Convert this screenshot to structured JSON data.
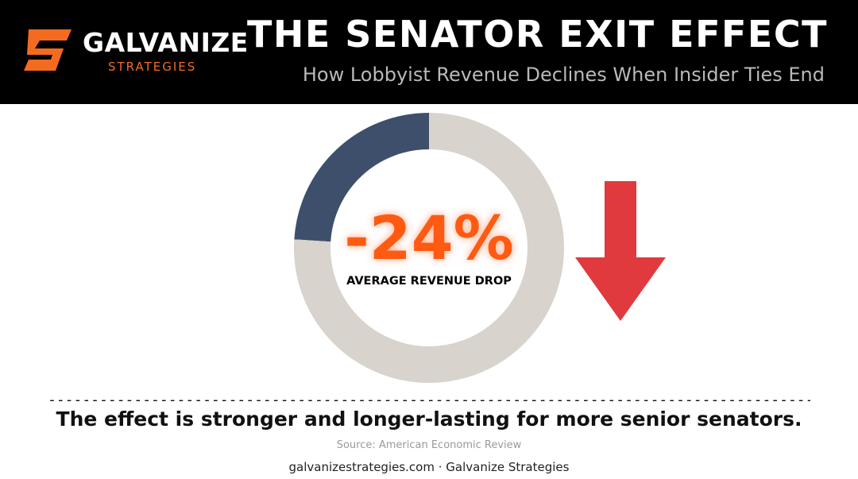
{
  "brand": {
    "name": "GALVANIZE",
    "tagline": "STRATEGIES",
    "accent_color": "#f26b21"
  },
  "header": {
    "title": "THE SENATOR EXIT EFFECT",
    "subtitle": "How Lobbyist Revenue Declines When Insider Ties End"
  },
  "chart_data": {
    "type": "pie",
    "variant": "donut",
    "slices": [
      {
        "value": 24,
        "color": "#3d4f6b"
      },
      {
        "value": 76,
        "color": "#d8d3cc"
      }
    ],
    "center_value": "-24%",
    "center_label": "AVERAGE REVENUE DROP",
    "center_value_color": "#ff5a12",
    "trend_icon": "down-arrow-icon",
    "trend_color": "#e03a3e"
  },
  "divider_text": "--------------------------------------------------------------------------------------------------",
  "takeaway": "The effect is stronger and longer-lasting for more senior senators.",
  "source": "Source: American Economic Review",
  "footer": "galvanizestrategies.com · Galvanize Strategies"
}
